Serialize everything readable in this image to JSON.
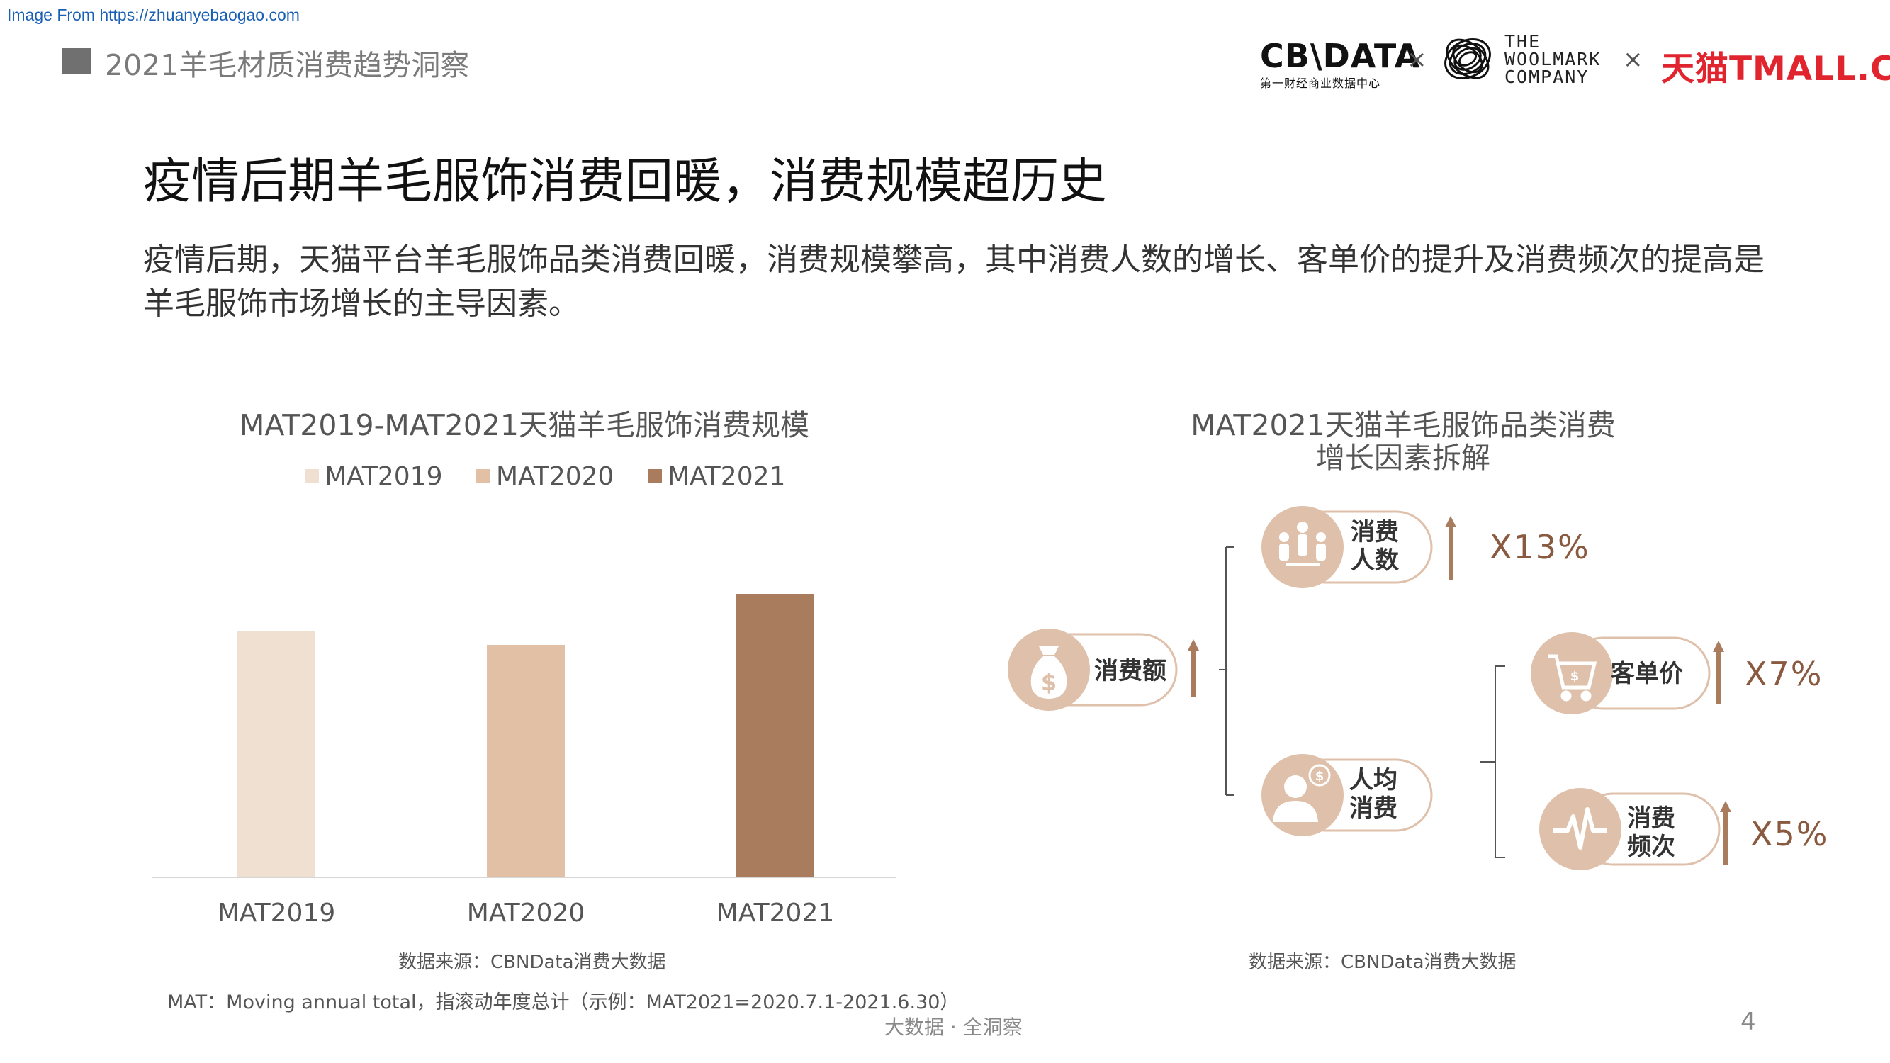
{
  "watermark": "Image From https://zhuanyebaogao.com",
  "header": {
    "title": "2021羊毛材质消费趋势洞察",
    "cbn_logo": "CB\\DATA",
    "cbn_sub": "第一财经商业数据中心",
    "times_symbol": "×",
    "woolmark_lines": [
      "THE",
      "WOOLMARK",
      "COMPANY"
    ],
    "tmall_logo": "天猫TMALL.COM",
    "colors": {
      "tmall": "#e0252f"
    }
  },
  "headline": "疫情后期羊毛服饰消费回暖，消费规模超历史",
  "body_text": "疫情后期，天猫平台羊毛服饰品类消费回暖，消费规模攀高，其中消费人数的增长、客单价的提升及消费频次的提高是羊毛服饰市场增长的主导因素。",
  "chart_data": [
    {
      "type": "bar",
      "title": "MAT2019-MAT2021天猫羊毛服饰消费规模",
      "categories": [
        "MAT2019",
        "MAT2020",
        "MAT2021"
      ],
      "series": [
        {
          "name": "MAT2019",
          "color": "#f0e0d2"
        },
        {
          "name": "MAT2020",
          "color": "#e1c0a6"
        },
        {
          "name": "MAT2021",
          "color": "#a97c5e"
        }
      ],
      "values": [
        0.87,
        0.82,
        1.0
      ],
      "legend_position": "top",
      "grid": false,
      "y_axis_shown": false
    }
  ],
  "source_left": "数据来源：CBNData消费大数据",
  "footnote": "MAT：Moving annual total，指滚动年度总计（示例：MAT2021=2020.7.1-2021.6.30）",
  "diagram": {
    "title_line1": "MAT2021天猫羊毛服饰品类消费",
    "title_line2": "增长因素拆解",
    "root": {
      "label": "消费额",
      "icon": "money-bag-icon"
    },
    "branch_people": {
      "label_line1": "消费",
      "label_line2": "人数",
      "icon": "people-icon",
      "growth": "X13%"
    },
    "branch_per_capita": {
      "label_line1": "人均",
      "label_line2": "消费",
      "icon": "person-coin-icon"
    },
    "branch_price": {
      "label": "客单价",
      "icon": "cart-icon",
      "growth": "X7%"
    },
    "branch_freq": {
      "label_line1": "消费",
      "label_line2": "频次",
      "icon": "pulse-icon",
      "growth": "X5%"
    },
    "colors": {
      "accent": "#a97c5e",
      "circle": "#dfc0aa",
      "arrow": "#a97c5e"
    }
  },
  "source_right": "数据来源：CBNData消费大数据",
  "footer_center": "大数据 · 全洞察",
  "page_number": "4"
}
